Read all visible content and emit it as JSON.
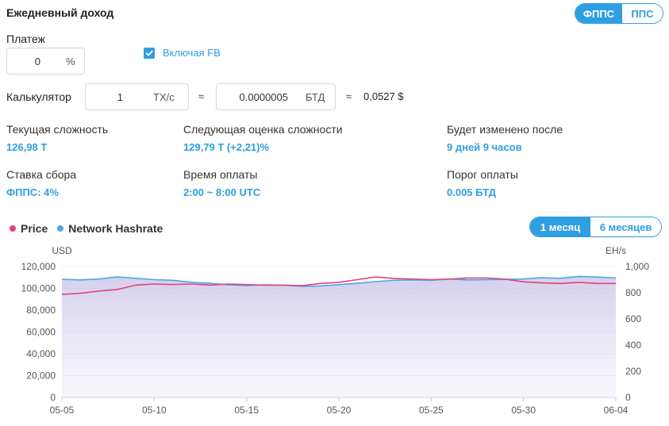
{
  "header": {
    "title": "Ежедневный доход",
    "mode_tabs": [
      {
        "label": "ФППС",
        "active": true
      },
      {
        "label": "ППС",
        "active": false
      }
    ]
  },
  "payment": {
    "label": "Платеж",
    "value": "0",
    "unit": "%",
    "include_fb_label": "Включая FB",
    "include_fb_checked": true
  },
  "calculator": {
    "label": "Калькулятор",
    "hashrate_value": "1",
    "hashrate_unit": "TX/c",
    "approx1": "≈",
    "btc_value": "0.0000005",
    "btc_unit": "БТД",
    "approx2": "≈",
    "usd_value": "0,0527 $"
  },
  "stats": [
    {
      "label": "Текущая сложность",
      "value": "126,98 T"
    },
    {
      "label": "Следующая оценка сложности",
      "value": "129,79 T (+2,21)%"
    },
    {
      "label": "Будет изменено после",
      "value": "9 дней 9 часов"
    },
    {
      "label": "Ставка сбора",
      "value": "ФППС: 4%"
    },
    {
      "label": "Время оплаты",
      "value": "2:00 ~ 8:00 UTC"
    },
    {
      "label": "Порог оплаты",
      "value": "0.005 БТД"
    }
  ],
  "chart_controls": {
    "legend": [
      {
        "name": "Price",
        "color": "#e0457b"
      },
      {
        "name": "Network Hashrate",
        "color": "#4aa8e8"
      }
    ],
    "range_tabs": [
      {
        "label": "1 месяц",
        "active": true
      },
      {
        "label": "6 месяцев",
        "active": false
      }
    ]
  },
  "chart_data": {
    "type": "line",
    "left_axis_label": "USD",
    "right_axis_label": "EH/s",
    "left_ylim": [
      0,
      120000
    ],
    "right_ylim": [
      0,
      1000
    ],
    "left_ticks": [
      "0",
      "20,000",
      "40,000",
      "60,000",
      "80,000",
      "100,000",
      "120,000"
    ],
    "right_ticks": [
      "0",
      "200",
      "400",
      "600",
      "800",
      "1,000"
    ],
    "x_ticks": [
      "05-05",
      "05-10",
      "05-15",
      "05-20",
      "05-25",
      "05-30",
      "06-04"
    ],
    "x": [
      "05-05",
      "05-06",
      "05-07",
      "05-08",
      "05-09",
      "05-10",
      "05-11",
      "05-12",
      "05-13",
      "05-14",
      "05-15",
      "05-16",
      "05-17",
      "05-18",
      "05-19",
      "05-20",
      "05-21",
      "05-22",
      "05-23",
      "05-24",
      "05-25",
      "05-26",
      "05-27",
      "05-28",
      "05-29",
      "05-30",
      "05-31",
      "06-01",
      "06-02",
      "06-03",
      "06-04"
    ],
    "series": [
      {
        "name": "Price",
        "axis": "left",
        "color": "#e0457b",
        "values": [
          94500,
          95500,
          97500,
          99000,
          103000,
          104000,
          103500,
          104000,
          103000,
          104000,
          103500,
          103000,
          103000,
          102500,
          104500,
          105500,
          108000,
          110500,
          109000,
          108500,
          108000,
          108500,
          109500,
          109500,
          108500,
          106000,
          105000,
          104500,
          105500,
          104500,
          104500
        ]
      },
      {
        "name": "Network Hashrate",
        "axis": "right",
        "color": "#4aa8e8",
        "values": [
          903,
          898,
          905,
          922,
          910,
          900,
          895,
          880,
          872,
          860,
          855,
          860,
          858,
          848,
          852,
          862,
          872,
          885,
          895,
          898,
          895,
          905,
          898,
          900,
          902,
          905,
          915,
          910,
          925,
          920,
          912
        ]
      }
    ],
    "legend_position": "top-left",
    "grid": true
  }
}
